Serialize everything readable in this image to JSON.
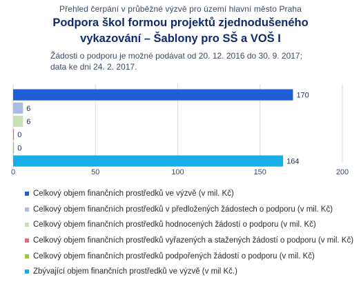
{
  "header": {
    "line1": "Přehled čerpání v průběžné výzvě pro území hlavní město Praha",
    "title_line1": "Podpora škol formou projektů zjednodušeného",
    "title_line2": "vykazování – Šablony pro SŠ a VOŠ I",
    "note_line1": "Žádosti o podporu je možné podávat od 20. 12. 2016 do 30. 9. 2017;",
    "note_line2": "data ke dni 24. 2. 2017."
  },
  "colors": {
    "series": [
      "#1f5fd6",
      "#a7bde3",
      "#c6e0b4",
      "#e07070",
      "#8fcf3c",
      "#16aee6"
    ],
    "grid": "#d9d9d9",
    "axis_text": "#3b4a6b"
  },
  "chart_data": {
    "type": "bar",
    "orientation": "horizontal",
    "xlim": [
      0,
      200
    ],
    "x_ticks": [
      "0",
      "50",
      "100",
      "150",
      "200"
    ],
    "grid": true,
    "legend_position": "bottom",
    "series": [
      {
        "name": "Celkový objem finančních prostředků ve výzvě (v mil. Kč)",
        "value": 170,
        "label": "170"
      },
      {
        "name": "Celkový objem finančních prostředků v předložených žádostech o podporu (v mil. Kč)",
        "value": 6,
        "label": "6"
      },
      {
        "name": "Celkový objem finančních prostředků hodnocených žádostí o podporu (v mil. Kč)",
        "value": 6,
        "label": "6"
      },
      {
        "name": "Celkový objem finančních prostředků vyřazených a stažených žádostí o podporu (v mil. Kč)",
        "value": 0,
        "label": "0"
      },
      {
        "name": "Celkový objem finančních prostředků podpořených žádostí o podporu (v mil. Kč)",
        "value": 0,
        "label": "0"
      },
      {
        "name": "Zbývající objem finančních prostředků ve výzvě (v mil Kč.)",
        "value": 164,
        "label": "164"
      }
    ]
  }
}
